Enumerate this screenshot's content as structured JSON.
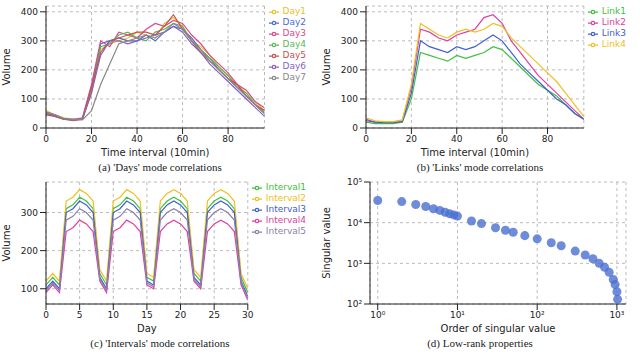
{
  "chart_data": [
    {
      "type": "line",
      "title": "(a) 'Days' mode correlations",
      "x_label": "Time interval (10min)",
      "y_label": "Volume",
      "x": [
        0,
        4,
        8,
        12,
        16,
        20,
        24,
        28,
        32,
        36,
        40,
        44,
        48,
        52,
        56,
        60,
        64,
        68,
        72,
        76,
        80,
        84,
        88,
        92,
        96
      ],
      "xlim": [
        0,
        96
      ],
      "xticks": [
        0,
        20,
        40,
        60,
        80
      ],
      "ylim": [
        0,
        420
      ],
      "yticks": [
        0,
        100,
        200,
        300,
        400
      ],
      "grid": true,
      "legend": "upper right",
      "series": [
        {
          "name": "Day1",
          "color": "#e6c229",
          "values": [
            60,
            45,
            35,
            30,
            30,
            120,
            270,
            290,
            300,
            310,
            330,
            320,
            310,
            360,
            380,
            350,
            300,
            280,
            250,
            210,
            180,
            150,
            120,
            90,
            60
          ]
        },
        {
          "name": "Day2",
          "color": "#4a6cd4",
          "values": [
            50,
            40,
            30,
            28,
            32,
            140,
            290,
            300,
            310,
            300,
            300,
            320,
            300,
            330,
            350,
            340,
            310,
            270,
            240,
            200,
            170,
            140,
            110,
            80,
            50
          ]
        },
        {
          "name": "Day3",
          "color": "#d94a8c",
          "values": [
            55,
            45,
            30,
            30,
            35,
            150,
            300,
            280,
            330,
            320,
            310,
            340,
            360,
            350,
            370,
            360,
            320,
            290,
            250,
            220,
            190,
            150,
            130,
            90,
            70
          ]
        },
        {
          "name": "Day4",
          "color": "#5ab65a",
          "values": [
            50,
            40,
            30,
            30,
            30,
            130,
            280,
            290,
            320,
            330,
            310,
            300,
            330,
            340,
            360,
            350,
            300,
            270,
            240,
            210,
            180,
            140,
            120,
            80,
            55
          ]
        },
        {
          "name": "Day5",
          "color": "#c85050",
          "values": [
            45,
            40,
            30,
            25,
            30,
            140,
            260,
            300,
            310,
            320,
            330,
            330,
            320,
            350,
            390,
            340,
            300,
            260,
            230,
            200,
            170,
            150,
            110,
            80,
            60
          ]
        },
        {
          "name": "Day6",
          "color": "#8a5fbf",
          "values": [
            50,
            42,
            32,
            28,
            30,
            120,
            250,
            300,
            300,
            290,
            300,
            310,
            320,
            330,
            350,
            330,
            290,
            260,
            220,
            190,
            160,
            130,
            100,
            70,
            40
          ]
        },
        {
          "name": "Day7",
          "color": "#888888",
          "values": [
            55,
            45,
            32,
            30,
            28,
            60,
            150,
            220,
            290,
            300,
            310,
            320,
            310,
            330,
            360,
            340,
            300,
            270,
            230,
            200,
            170,
            140,
            110,
            80,
            50
          ]
        }
      ]
    },
    {
      "type": "line",
      "title": "(b) 'Links' mode correlations",
      "x_label": "Time interval (10min)",
      "y_label": "Volume",
      "x": [
        0,
        4,
        8,
        12,
        16,
        20,
        24,
        28,
        32,
        36,
        40,
        44,
        48,
        52,
        56,
        60,
        64,
        68,
        72,
        76,
        80,
        84,
        88,
        92,
        96
      ],
      "xlim": [
        0,
        96
      ],
      "xticks": [
        0,
        20,
        40,
        60,
        80
      ],
      "ylim": [
        0,
        420
      ],
      "yticks": [
        0,
        100,
        200,
        300,
        400
      ],
      "grid": true,
      "legend": "upper right",
      "series": [
        {
          "name": "Link1",
          "color": "#40c040",
          "values": [
            20,
            15,
            15,
            15,
            20,
            100,
            260,
            250,
            240,
            230,
            250,
            240,
            250,
            260,
            280,
            270,
            240,
            210,
            180,
            150,
            130,
            110,
            80,
            50,
            30
          ]
        },
        {
          "name": "Link2",
          "color": "#e040a0",
          "values": [
            30,
            20,
            20,
            20,
            25,
            140,
            340,
            330,
            310,
            300,
            320,
            330,
            340,
            380,
            390,
            360,
            300,
            260,
            220,
            180,
            150,
            120,
            90,
            60,
            30
          ]
        },
        {
          "name": "Link3",
          "color": "#4060d0",
          "values": [
            25,
            20,
            18,
            18,
            22,
            120,
            300,
            280,
            270,
            260,
            280,
            270,
            280,
            300,
            320,
            300,
            260,
            220,
            190,
            160,
            130,
            100,
            80,
            50,
            30
          ]
        },
        {
          "name": "Link4",
          "color": "#f0c020",
          "values": [
            35,
            25,
            22,
            22,
            28,
            150,
            360,
            340,
            320,
            310,
            330,
            340,
            330,
            340,
            360,
            350,
            310,
            280,
            250,
            220,
            190,
            160,
            120,
            80,
            40
          ]
        }
      ]
    },
    {
      "type": "line",
      "title": "(c) 'Intervals' mode correlations",
      "x_label": "Day",
      "y_label": "Volume",
      "x": [
        0,
        1,
        2,
        3,
        4,
        5,
        6,
        7,
        8,
        9,
        10,
        11,
        12,
        13,
        14,
        15,
        16,
        17,
        18,
        19,
        20,
        21,
        22,
        23,
        24,
        25,
        26,
        27,
        28,
        29,
        30
      ],
      "xlim": [
        0,
        30
      ],
      "xticks": [
        0,
        5,
        10,
        15,
        20,
        25,
        30
      ],
      "ylim": [
        60,
        380
      ],
      "yticks": [
        100,
        200,
        300
      ],
      "grid": true,
      "legend": "upper right",
      "series": [
        {
          "name": "Interval1",
          "color": "#40c040",
          "values": [
            110,
            130,
            110,
            310,
            320,
            340,
            330,
            310,
            140,
            110,
            310,
            320,
            340,
            330,
            310,
            130,
            120,
            310,
            330,
            340,
            330,
            310,
            140,
            120,
            310,
            330,
            340,
            330,
            310,
            130,
            90
          ]
        },
        {
          "name": "Interval2",
          "color": "#f0c020",
          "values": [
            120,
            140,
            120,
            330,
            340,
            360,
            350,
            330,
            150,
            120,
            330,
            340,
            360,
            350,
            330,
            140,
            130,
            330,
            350,
            360,
            350,
            330,
            150,
            130,
            330,
            350,
            360,
            350,
            330,
            140,
            100
          ]
        },
        {
          "name": "Interval3",
          "color": "#4060d0",
          "values": [
            100,
            120,
            100,
            300,
            310,
            330,
            320,
            300,
            130,
            100,
            300,
            310,
            330,
            320,
            300,
            120,
            110,
            300,
            320,
            330,
            320,
            300,
            130,
            110,
            300,
            320,
            330,
            320,
            300,
            120,
            80
          ]
        },
        {
          "name": "Interval4",
          "color": "#e040a0",
          "values": [
            90,
            110,
            90,
            250,
            260,
            280,
            270,
            250,
            120,
            90,
            250,
            260,
            280,
            270,
            250,
            110,
            100,
            250,
            270,
            280,
            270,
            250,
            120,
            100,
            250,
            270,
            280,
            270,
            250,
            110,
            70
          ]
        },
        {
          "name": "Interval5",
          "color": "#8c7fb0",
          "values": [
            95,
            115,
            95,
            280,
            290,
            310,
            300,
            280,
            125,
            95,
            280,
            290,
            310,
            300,
            280,
            115,
            105,
            280,
            300,
            310,
            300,
            280,
            125,
            105,
            280,
            300,
            310,
            300,
            280,
            115,
            75
          ]
        }
      ]
    },
    {
      "type": "scatter",
      "title": "(d) Low-rank properties",
      "x_label": "Order of singular value",
      "y_label": "Singular value",
      "log": true,
      "grid": true,
      "marker": "circle",
      "color": "#4a6fd1",
      "xlim": [
        0.8,
        1300
      ],
      "xticks": [
        {
          "value": 1,
          "label": "10⁰"
        },
        {
          "value": 10,
          "label": "10¹"
        },
        {
          "value": 100,
          "label": "10²"
        },
        {
          "value": 1000,
          "label": "10³"
        }
      ],
      "ylim": [
        100,
        100000
      ],
      "yticks": [
        {
          "value": 100,
          "label": "10²"
        },
        {
          "value": 1000,
          "label": "10³"
        },
        {
          "value": 10000,
          "label": "10⁴"
        },
        {
          "value": 100000,
          "label": "10⁵"
        }
      ],
      "x": [
        1,
        2,
        3,
        4,
        5,
        6,
        7,
        8,
        9,
        10,
        15,
        20,
        30,
        40,
        50,
        70,
        100,
        150,
        200,
        300,
        400,
        500,
        600,
        700,
        800,
        900,
        950,
        1000,
        1020
      ],
      "values": [
        35000,
        33000,
        28000,
        25000,
        22000,
        20000,
        18000,
        16500,
        15500,
        14500,
        11000,
        9500,
        7500,
        6500,
        5800,
        4800,
        4000,
        3200,
        2700,
        2000,
        1600,
        1300,
        1000,
        800,
        600,
        400,
        300,
        200,
        130
      ]
    }
  ]
}
